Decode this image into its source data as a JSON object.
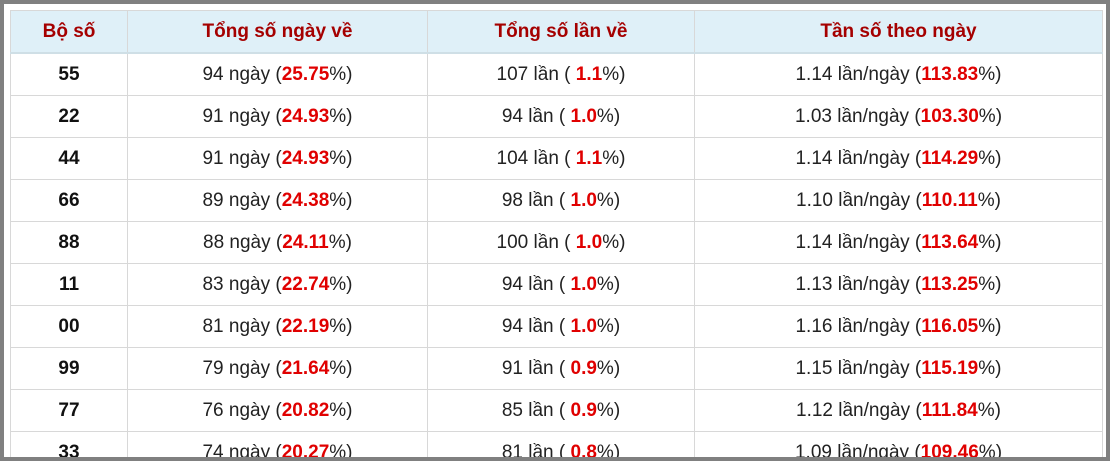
{
  "table": {
    "header": [
      "Bộ số",
      "Tổng số ngày về",
      "Tổng số lần về",
      "Tần số theo ngày"
    ],
    "rows": [
      [
        "55",
        [
          "94 ngày (",
          "25.75",
          "%)"
        ],
        [
          "107 lần ( ",
          "1.1",
          "%)"
        ],
        [
          "1.14 lần/ngày (",
          "113.83",
          "%)"
        ]
      ],
      [
        "22",
        [
          "91 ngày (",
          "24.93",
          "%)"
        ],
        [
          "94 lần ( ",
          "1.0",
          "%)"
        ],
        [
          "1.03 lần/ngày (",
          "103.30",
          "%)"
        ]
      ],
      [
        "44",
        [
          "91 ngày (",
          "24.93",
          "%)"
        ],
        [
          "104 lần ( ",
          "1.1",
          "%)"
        ],
        [
          "1.14 lần/ngày (",
          "114.29",
          "%)"
        ]
      ],
      [
        "66",
        [
          "89 ngày (",
          "24.38",
          "%)"
        ],
        [
          "98 lần ( ",
          "1.0",
          "%)"
        ],
        [
          "1.10 lần/ngày (",
          "110.11",
          "%)"
        ]
      ],
      [
        "88",
        [
          "88 ngày (",
          "24.11",
          "%)"
        ],
        [
          "100 lần ( ",
          "1.0",
          "%)"
        ],
        [
          "1.14 lần/ngày (",
          "113.64",
          "%)"
        ]
      ],
      [
        "11",
        [
          "83 ngày (",
          "22.74",
          "%)"
        ],
        [
          "94 lần ( ",
          "1.0",
          "%)"
        ],
        [
          "1.13 lần/ngày (",
          "113.25",
          "%)"
        ]
      ],
      [
        "00",
        [
          "81 ngày (",
          "22.19",
          "%)"
        ],
        [
          "94 lần ( ",
          "1.0",
          "%)"
        ],
        [
          "1.16 lần/ngày (",
          "116.05",
          "%)"
        ]
      ],
      [
        "99",
        [
          "79 ngày (",
          "21.64",
          "%)"
        ],
        [
          "91 lần ( ",
          "0.9",
          "%)"
        ],
        [
          "1.15 lần/ngày (",
          "115.19",
          "%)"
        ]
      ],
      [
        "77",
        [
          "76 ngày (",
          "20.82",
          "%)"
        ],
        [
          "85 lần ( ",
          "0.9",
          "%)"
        ],
        [
          "1.12 lần/ngày (",
          "111.84",
          "%)"
        ]
      ],
      [
        "33",
        [
          "74 ngày (",
          "20.27",
          "%)"
        ],
        [
          "81 lần ( ",
          "0.8",
          "%)"
        ],
        [
          "1.09 lần/ngày (",
          "109.46",
          "%)"
        ]
      ]
    ]
  }
}
